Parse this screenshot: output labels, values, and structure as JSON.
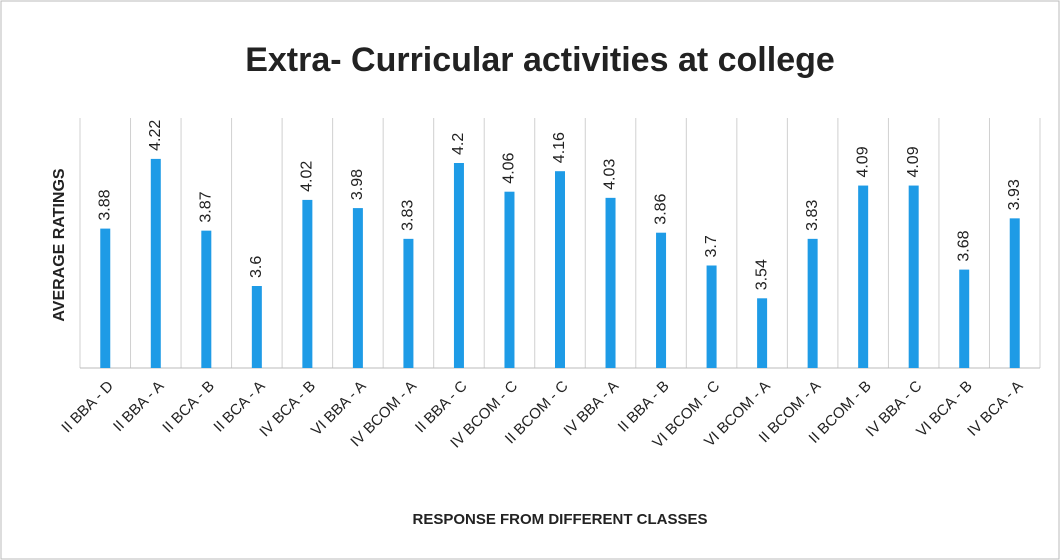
{
  "chart_data": {
    "type": "bar",
    "title": "Extra- Curricular activities at college",
    "x_label": "RESPONSE FROM DIFFERENT CLASSES",
    "y_label": "AVERAGE RATINGS",
    "categories": [
      "II BBA - D",
      "II BBA - A",
      "II BCA - B",
      "II BCA - A",
      "IV BCA - B",
      "VI BBA - A",
      "IV BCOM - A",
      "II BBA - C",
      "IV BCOM - C",
      "II BCOM - C",
      "IV BBA - A",
      "II BBA - B",
      "VI BCOM - C",
      "VI BCOM - A",
      "II BCOM - A",
      "II BCOM - B",
      "IV BBA - C",
      "VI BCA - B",
      "IV BCA - A"
    ],
    "values": [
      3.88,
      4.22,
      3.87,
      3.6,
      4.02,
      3.98,
      3.83,
      4.2,
      4.06,
      4.16,
      4.03,
      3.86,
      3.7,
      3.54,
      3.83,
      4.09,
      4.09,
      3.68,
      3.93
    ],
    "color": "#1e9be6",
    "ylim": [
      3.2,
      4.4
    ],
    "grid": true
  }
}
